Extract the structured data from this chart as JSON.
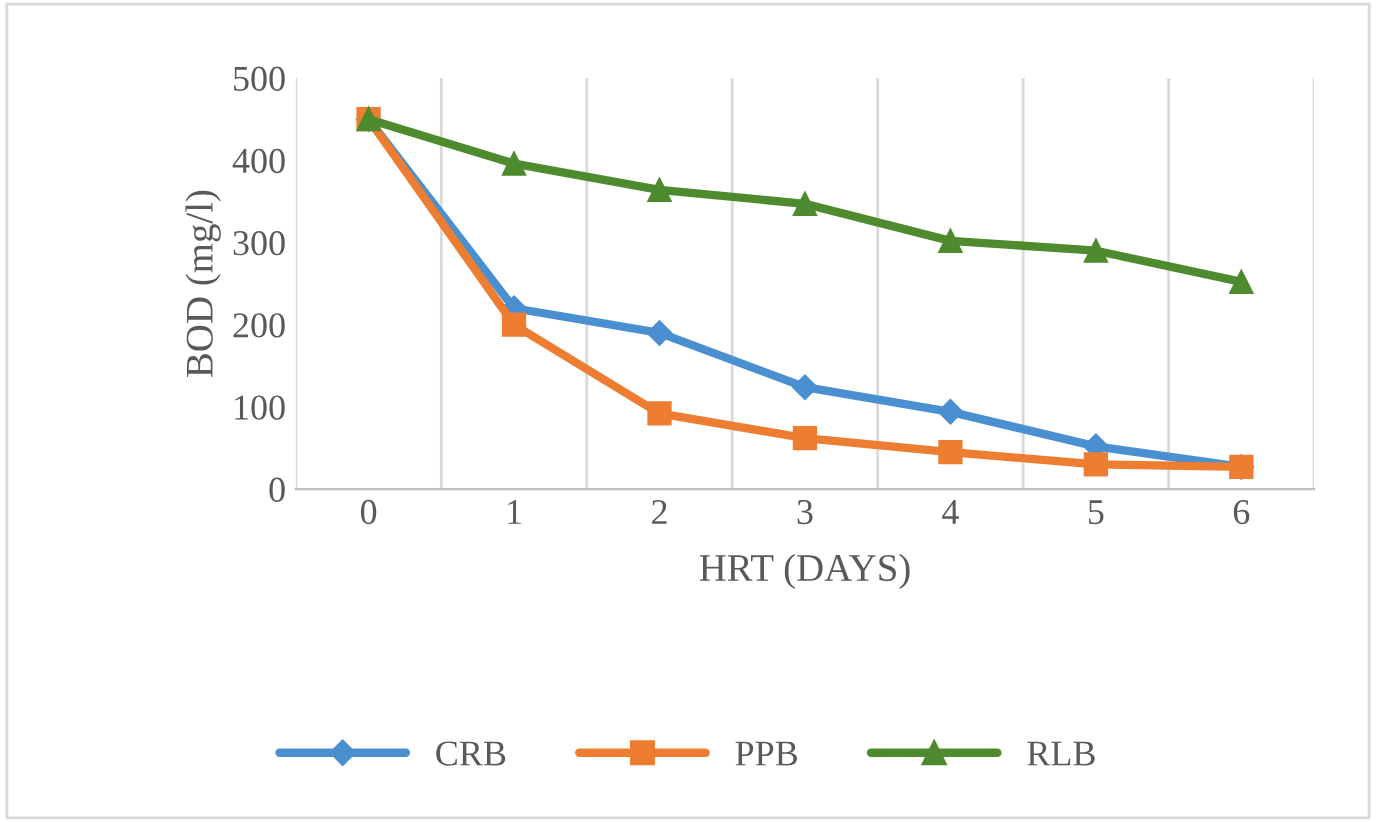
{
  "chart_data": {
    "type": "line",
    "xlabel": "HRT (DAYS)",
    "ylabel": "BOD (mg/l)",
    "categories": [
      "0",
      "1",
      "2",
      "3",
      "4",
      "5",
      "6"
    ],
    "series": [
      {
        "name": "CRB",
        "color": "#4a8fd0",
        "marker": "diamond",
        "values": [
          450,
          220,
          190,
          124,
          94,
          52,
          27
        ]
      },
      {
        "name": "PPB",
        "color": "#ed7d31",
        "marker": "square",
        "values": [
          450,
          200,
          92,
          62,
          45,
          30,
          27
        ]
      },
      {
        "name": "RLB",
        "color": "#4e8a2e",
        "marker": "triangle",
        "values": [
          450,
          396,
          364,
          347,
          302,
          290,
          252
        ]
      }
    ],
    "ylim": [
      0,
      500
    ],
    "yticks": [
      0,
      100,
      200,
      300,
      400,
      500
    ],
    "grid": "x",
    "legend": "bottom",
    "line_style": "solid"
  }
}
